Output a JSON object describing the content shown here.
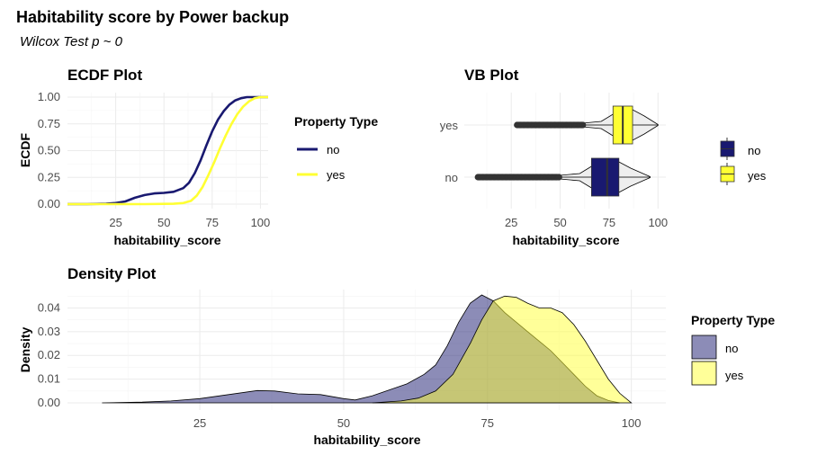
{
  "title": "Habitability score by Power backup",
  "subtitle": "Wilcox Test p ~ 0",
  "colors": {
    "no": "#191970",
    "yes": "#ffff33",
    "no_fill": "#191970",
    "yes_fill": "#ffff33",
    "outlier": "#333333",
    "violin": "#eeeeee"
  },
  "chart_data": [
    {
      "type": "line",
      "title": "ECDF Plot",
      "xlabel": "habitability_score",
      "ylabel": "ECDF",
      "xlim": [
        0,
        104
      ],
      "ylim": [
        0,
        1
      ],
      "xticks": [
        "25",
        "50",
        "75",
        "100"
      ],
      "yticks": [
        "0.00",
        "0.25",
        "0.50",
        "0.75",
        "1.00"
      ],
      "legend_title": "Property Type",
      "series": [
        {
          "name": "no",
          "x": [
            0,
            10,
            20,
            25,
            30,
            35,
            40,
            45,
            50,
            55,
            60,
            63,
            66,
            69,
            72,
            75,
            78,
            81,
            84,
            87,
            90,
            93,
            96,
            100,
            104
          ],
          "y": [
            0,
            0,
            0.003,
            0.01,
            0.025,
            0.06,
            0.085,
            0.1,
            0.105,
            0.115,
            0.15,
            0.2,
            0.29,
            0.41,
            0.55,
            0.68,
            0.79,
            0.87,
            0.93,
            0.97,
            0.99,
            1,
            1,
            1,
            1
          ]
        },
        {
          "name": "yes",
          "x": [
            0,
            20,
            40,
            55,
            60,
            64,
            67,
            70,
            73,
            76,
            79,
            82,
            85,
            88,
            91,
            94,
            97,
            100,
            104
          ],
          "y": [
            0,
            0,
            0,
            0.003,
            0.01,
            0.03,
            0.08,
            0.16,
            0.27,
            0.39,
            0.52,
            0.64,
            0.75,
            0.84,
            0.91,
            0.96,
            0.99,
            1,
            1
          ]
        }
      ]
    },
    {
      "type": "violin",
      "title": "VB Plot",
      "xlabel": "habitability_score",
      "xlim": [
        1,
        104
      ],
      "xticks": [
        "25",
        "50",
        "75",
        "100"
      ],
      "categories": [
        "no",
        "yes"
      ],
      "legend_items": [
        "no",
        "yes"
      ],
      "series": [
        {
          "name": "no",
          "q1": 66,
          "median": 74,
          "q3": 80,
          "whisker_low": 50,
          "whisker_high": 96,
          "outlier_range": [
            8,
            50
          ]
        },
        {
          "name": "yes",
          "q1": 77,
          "median": 82,
          "q3": 87,
          "whisker_low": 62,
          "whisker_high": 100,
          "outlier_range": [
            28,
            62
          ]
        }
      ]
    },
    {
      "type": "area",
      "title": "Density Plot",
      "xlabel": "habitability_score",
      "ylabel": "Density",
      "xlim": [
        2,
        106
      ],
      "ylim": [
        0,
        0.047
      ],
      "xticks": [
        "25",
        "50",
        "75",
        "100"
      ],
      "yticks": [
        "0.00",
        "0.01",
        "0.02",
        "0.03",
        "0.04"
      ],
      "legend_title": "Property Type",
      "series": [
        {
          "name": "no",
          "x": [
            8,
            15,
            20,
            25,
            30,
            35,
            38,
            42,
            46,
            50,
            52,
            55,
            58,
            61,
            64,
            66,
            68,
            70,
            72,
            74,
            76,
            78,
            80,
            82,
            84,
            86,
            88,
            90,
            92,
            94,
            96,
            98
          ],
          "y": [
            0,
            0.0003,
            0.0008,
            0.0018,
            0.0035,
            0.0052,
            0.005,
            0.0038,
            0.0035,
            0.0018,
            0.0012,
            0.003,
            0.0055,
            0.008,
            0.012,
            0.016,
            0.024,
            0.034,
            0.042,
            0.0455,
            0.043,
            0.038,
            0.034,
            0.03,
            0.026,
            0.022,
            0.017,
            0.012,
            0.007,
            0.003,
            0.001,
            0
          ]
        },
        {
          "name": "yes",
          "x": [
            55,
            60,
            63,
            66,
            69,
            72,
            74,
            76,
            78,
            80,
            82,
            84,
            86,
            88,
            90,
            92,
            94,
            96,
            98,
            100
          ],
          "y": [
            0,
            0.0008,
            0.002,
            0.005,
            0.012,
            0.025,
            0.035,
            0.043,
            0.045,
            0.0445,
            0.042,
            0.04,
            0.04,
            0.038,
            0.033,
            0.026,
            0.018,
            0.01,
            0.004,
            0
          ]
        }
      ]
    }
  ]
}
